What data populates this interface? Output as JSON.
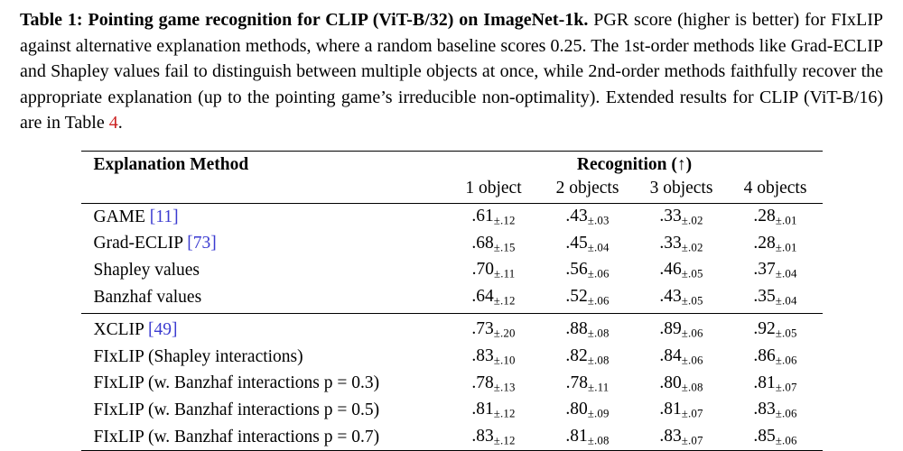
{
  "caption": {
    "segments": [
      {
        "text": "Table 1: Pointing game recognition for CLIP (ViT-B/32) on ImageNet-1k.",
        "style": "bold"
      },
      {
        "text": " PGR score (higher is better) for FIxLIP against alternative explanation methods, where a random baseline scores 0.25. The 1st-order methods like Grad-ECLIP and Shapley values fail to distinguish between multiple objects at once, while 2nd-order methods faithfully recover the appropriate explanation (up to the pointing game’s irreducible non-optimality). Extended results for CLIP (ViT-B/16) are in Table ",
        "style": "normal"
      },
      {
        "text": "4",
        "style": "ref"
      },
      {
        "text": ".",
        "style": "normal"
      }
    ]
  },
  "table": {
    "header": {
      "method": "Explanation Method",
      "group": "Recognition (↑)",
      "sub": [
        "1 object",
        "2 objects",
        "3 objects",
        "4 objects"
      ]
    },
    "groups": [
      {
        "rows": [
          {
            "method": "GAME",
            "cite": "[11]",
            "values": [
              {
                "main": ".61",
                "sub": "±.12"
              },
              {
                "main": ".43",
                "sub": "±.03"
              },
              {
                "main": ".33",
                "sub": "±.02"
              },
              {
                "main": ".28",
                "sub": "±.01"
              }
            ]
          },
          {
            "method": "Grad-ECLIP",
            "cite": "[73]",
            "values": [
              {
                "main": ".68",
                "sub": "±.15"
              },
              {
                "main": ".45",
                "sub": "±.04"
              },
              {
                "main": ".33",
                "sub": "±.02"
              },
              {
                "main": ".28",
                "sub": "±.01"
              }
            ]
          },
          {
            "method": "Shapley values",
            "cite": null,
            "values": [
              {
                "main": ".70",
                "sub": "±.11"
              },
              {
                "main": ".56",
                "sub": "±.06"
              },
              {
                "main": ".46",
                "sub": "±.05"
              },
              {
                "main": ".37",
                "sub": "±.04"
              }
            ]
          },
          {
            "method": "Banzhaf values",
            "cite": null,
            "values": [
              {
                "main": ".64",
                "sub": "±.12"
              },
              {
                "main": ".52",
                "sub": "±.06"
              },
              {
                "main": ".43",
                "sub": "±.05"
              },
              {
                "main": ".35",
                "sub": "±.04"
              }
            ]
          }
        ]
      },
      {
        "rows": [
          {
            "method": "XCLIP",
            "cite": "[49]",
            "values": [
              {
                "main": ".73",
                "sub": "±.20"
              },
              {
                "main": ".88",
                "sub": "±.08"
              },
              {
                "main": ".89",
                "sub": "±.06"
              },
              {
                "main": ".92",
                "sub": "±.05"
              }
            ]
          },
          {
            "method": "FIxLIP (Shapley interactions)",
            "cite": null,
            "values": [
              {
                "main": ".83",
                "sub": "±.10"
              },
              {
                "main": ".82",
                "sub": "±.08"
              },
              {
                "main": ".84",
                "sub": "±.06"
              },
              {
                "main": ".86",
                "sub": "±.06"
              }
            ]
          },
          {
            "method": "FIxLIP (w. Banzhaf interactions p = 0.3)",
            "cite": null,
            "values": [
              {
                "main": ".78",
                "sub": "±.13"
              },
              {
                "main": ".78",
                "sub": "±.11"
              },
              {
                "main": ".80",
                "sub": "±.08"
              },
              {
                "main": ".81",
                "sub": "±.07"
              }
            ]
          },
          {
            "method": "FIxLIP (w. Banzhaf interactions p = 0.5)",
            "cite": null,
            "values": [
              {
                "main": ".81",
                "sub": "±.12"
              },
              {
                "main": ".80",
                "sub": "±.09"
              },
              {
                "main": ".81",
                "sub": "±.07"
              },
              {
                "main": ".83",
                "sub": "±.06"
              }
            ]
          },
          {
            "method": "FIxLIP (w. Banzhaf interactions p = 0.7)",
            "cite": null,
            "values": [
              {
                "main": ".83",
                "sub": "±.12"
              },
              {
                "main": ".81",
                "sub": "±.08"
              },
              {
                "main": ".83",
                "sub": "±.07"
              },
              {
                "main": ".85",
                "sub": "±.06"
              }
            ]
          }
        ]
      }
    ]
  },
  "colors": {
    "citation_link": "#3b3bd0",
    "reference_link": "#cc2222"
  }
}
